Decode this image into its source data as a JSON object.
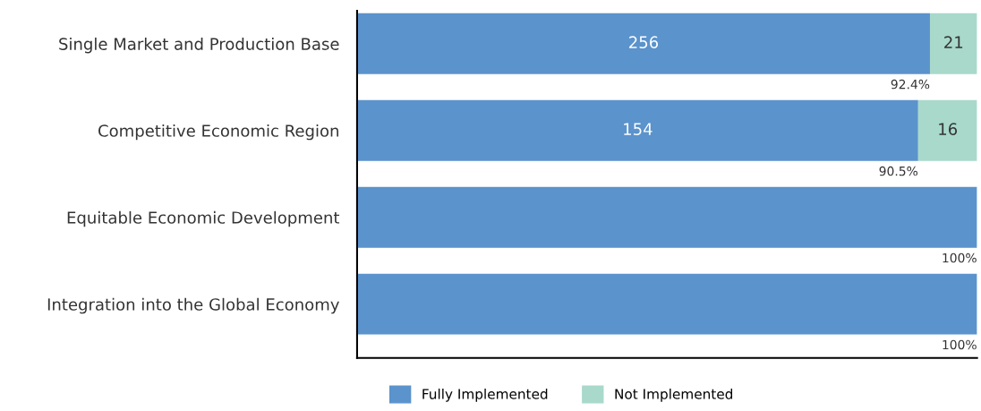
{
  "chart_data": {
    "type": "bar",
    "orientation": "horizontal",
    "stacked": true,
    "categories": [
      "Single Market and Production Base",
      "Competitive Economic Region",
      "Equitable Economic Development",
      "Integration into the Global Economy"
    ],
    "series": [
      {
        "name": "Fully Implemented",
        "color": "#5b93cc",
        "values": [
          92.4,
          90.5,
          100,
          100
        ],
        "value_labels": [
          "92.4%",
          "90.5%",
          "100%",
          "100%"
        ]
      },
      {
        "name": "Not Implemented",
        "color": "#a8d9cb",
        "values": [
          7.6,
          9.5,
          0,
          0
        ]
      }
    ],
    "annotations": [
      "256",
      "21",
      "154",
      "16"
    ],
    "xlim": [
      0,
      100
    ],
    "tick_labels": "y",
    "legend": "bottom",
    "grid": false
  }
}
